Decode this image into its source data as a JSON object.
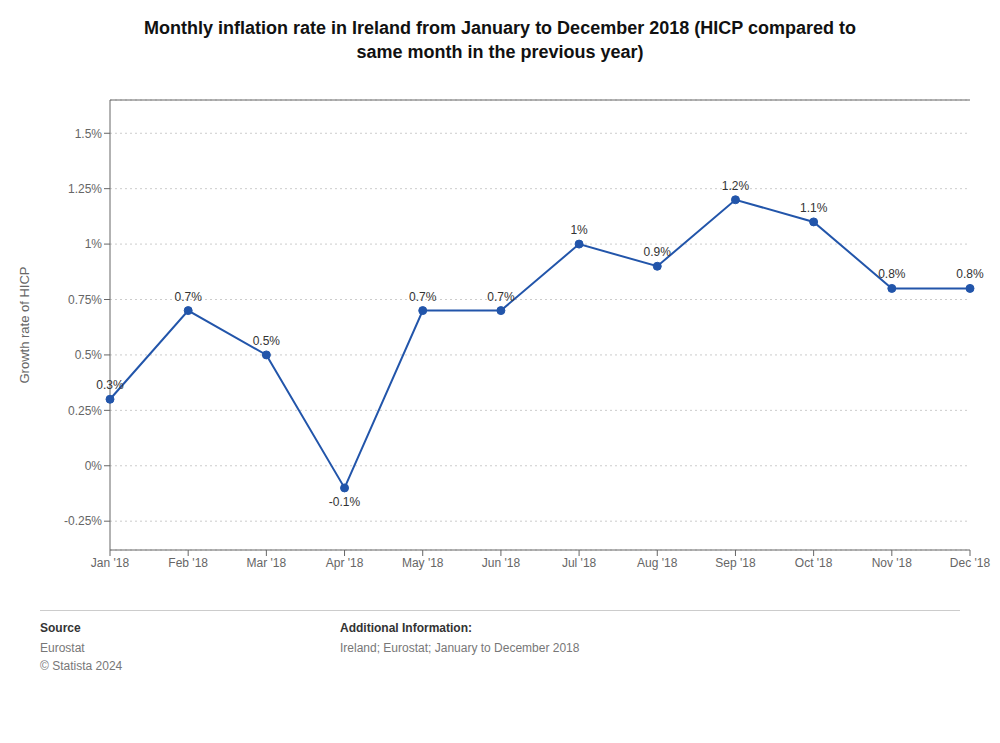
{
  "chart_data": {
    "type": "line",
    "title": "Monthly inflation rate in Ireland from January to December 2018 (HICP compared to\nsame month in the previous year)",
    "ylabel": "Growth rate of HICP",
    "categories": [
      "Jan '18",
      "Feb '18",
      "Mar '18",
      "Apr '18",
      "May '18",
      "Jun '18",
      "Jul '18",
      "Aug '18",
      "Sep '18",
      "Oct '18",
      "Nov '18",
      "Dec '18"
    ],
    "values": [
      0.3,
      0.7,
      0.5,
      -0.1,
      0.7,
      0.7,
      1.0,
      0.9,
      1.2,
      1.1,
      0.8,
      0.8
    ],
    "value_labels": [
      "0.3%",
      "0.7%",
      "0.5%",
      "-0.1%",
      "0.7%",
      "0.7%",
      "1%",
      "0.9%",
      "1.2%",
      "1.1%",
      "0.8%",
      "0.8%"
    ],
    "data_labels": true,
    "color": "#2255aa",
    "marker": "circle",
    "ylim": [
      -0.38,
      1.65
    ],
    "yticks": [
      {
        "value": -0.25,
        "label": "-0.25%"
      },
      {
        "value": 0.0,
        "label": "0%"
      },
      {
        "value": 0.25,
        "label": "0.25%"
      },
      {
        "value": 0.5,
        "label": "0.5%"
      },
      {
        "value": 0.75,
        "label": "0.75%"
      },
      {
        "value": 1.0,
        "label": "1%"
      },
      {
        "value": 1.25,
        "label": "1.25%"
      },
      {
        "value": 1.5,
        "label": "1.5%"
      }
    ],
    "grid": true,
    "annotations": [
      "Source",
      "Eurostat\n© Statista 2024",
      "Additional Information:",
      "Ireland; Eurostat; January to December 2018"
    ]
  }
}
